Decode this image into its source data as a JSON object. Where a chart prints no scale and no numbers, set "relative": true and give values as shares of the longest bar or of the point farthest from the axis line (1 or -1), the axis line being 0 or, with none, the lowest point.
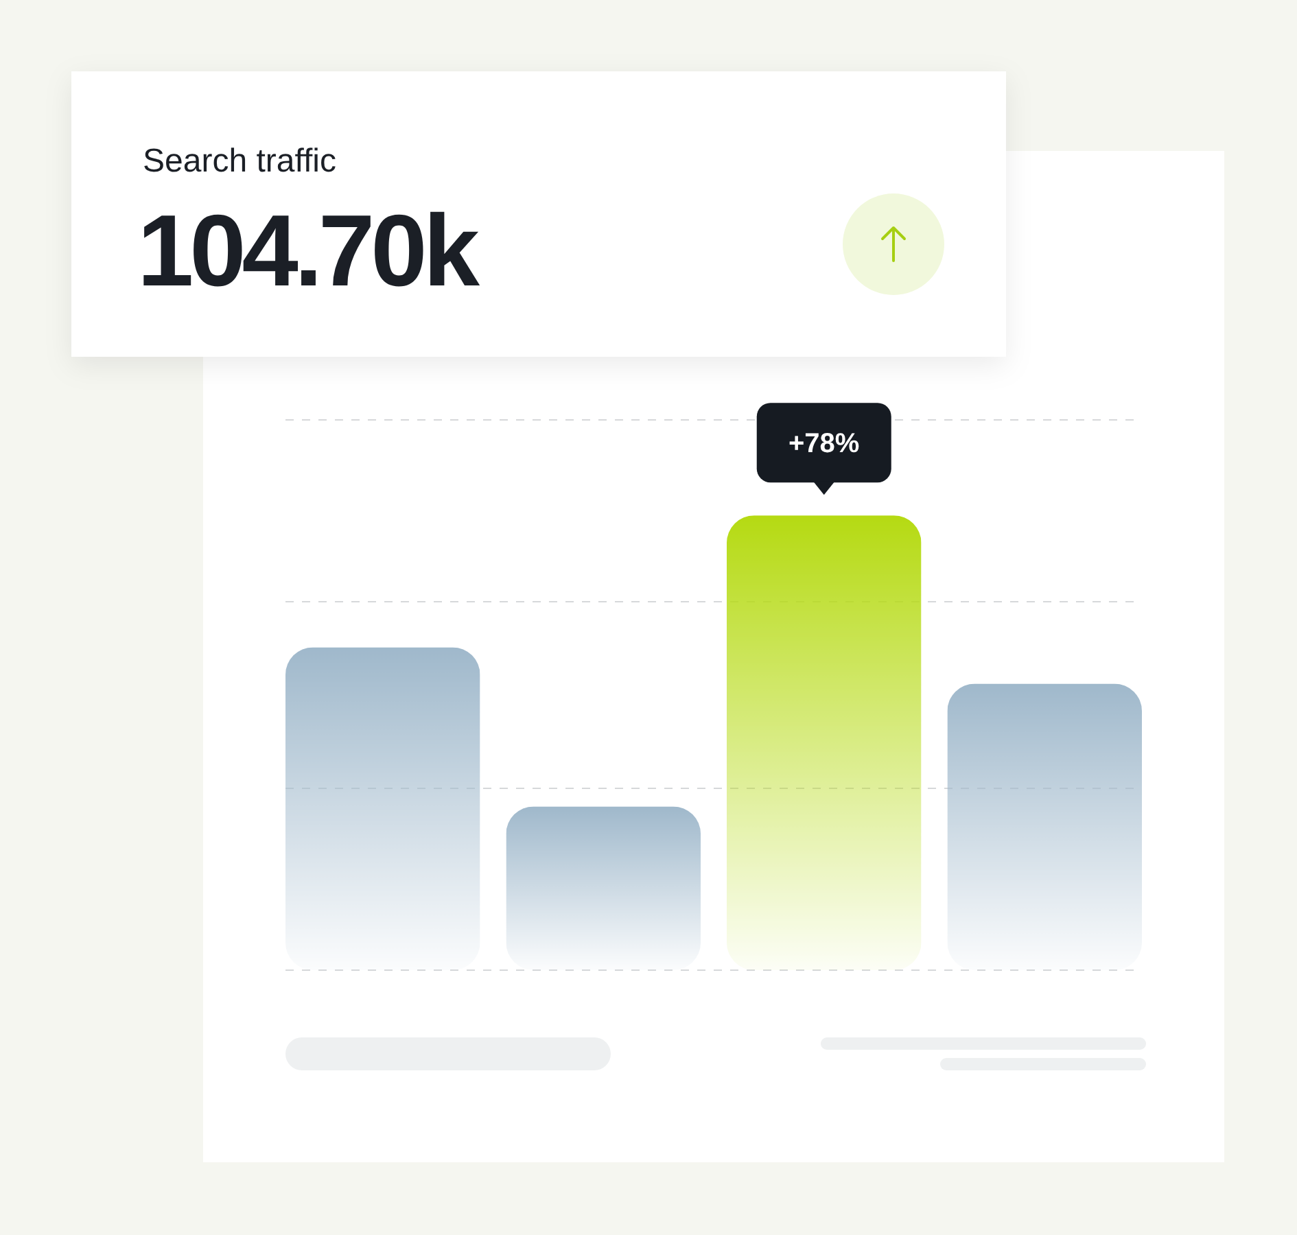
{
  "chart_data": {
    "type": "bar",
    "title": "Search traffic",
    "subtitle": "104.70k",
    "categories": [
      null,
      null,
      null,
      null
    ],
    "values": [
      0.71,
      0.36,
      1,
      0.63
    ],
    "colors": [
      "#9fb8cb",
      "#9fb8cb",
      "#b5da12",
      "#9fb8cb"
    ],
    "relative": true,
    "ref_lines": [
      {
        "axis": "y",
        "value": 0.4,
        "color": "#d6d8da",
        "line_style": "dashed"
      },
      {
        "axis": "y",
        "value": 0.81,
        "color": "#d6d8da",
        "line_style": "dashed"
      },
      {
        "axis": "y",
        "value": 1.21,
        "color": "#d6d8da",
        "line_style": "dashed"
      }
    ],
    "annotations": [
      "+78%"
    ]
  }
}
